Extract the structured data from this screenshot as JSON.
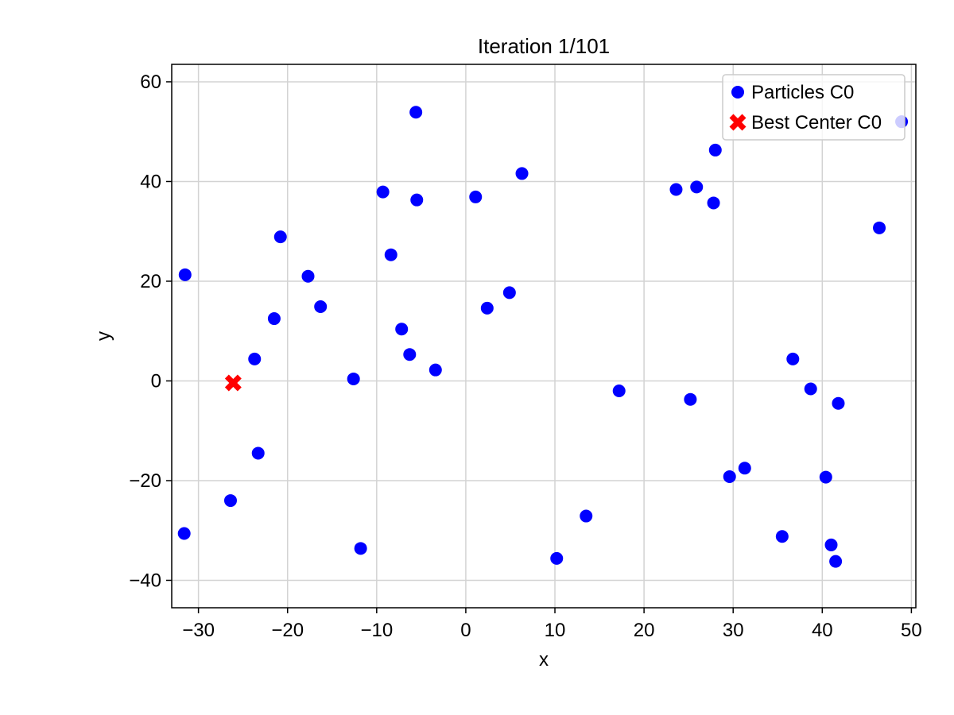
{
  "chart_data": {
    "type": "scatter",
    "title": "Iteration 1/101",
    "xlabel": "x",
    "ylabel": "y",
    "xlim": [
      -33,
      50.5
    ],
    "ylim": [
      -45.5,
      63.5
    ],
    "xticks": [
      -30,
      -20,
      -10,
      0,
      10,
      20,
      30,
      40,
      50
    ],
    "yticks": [
      -40,
      -20,
      0,
      20,
      40,
      60
    ],
    "grid": true,
    "legend_position": "top-right",
    "series": [
      {
        "name": "Particles C0",
        "marker": "circle",
        "color": "#0000ff",
        "points": [
          {
            "x": -31.5,
            "y": 21.3
          },
          {
            "x": -31.6,
            "y": -30.6
          },
          {
            "x": -26.4,
            "y": -24.0
          },
          {
            "x": -23.7,
            "y": 4.4
          },
          {
            "x": -23.3,
            "y": -14.5
          },
          {
            "x": -21.5,
            "y": 12.5
          },
          {
            "x": -20.8,
            "y": 28.9
          },
          {
            "x": -17.7,
            "y": 21.0
          },
          {
            "x": -16.3,
            "y": 14.9
          },
          {
            "x": -12.6,
            "y": 0.4
          },
          {
            "x": -11.8,
            "y": -33.6
          },
          {
            "x": -9.3,
            "y": 37.9
          },
          {
            "x": -8.4,
            "y": 25.3
          },
          {
            "x": -7.2,
            "y": 10.4
          },
          {
            "x": -6.3,
            "y": 5.3
          },
          {
            "x": -5.6,
            "y": 53.9
          },
          {
            "x": -5.5,
            "y": 36.3
          },
          {
            "x": -3.4,
            "y": 2.2
          },
          {
            "x": 1.1,
            "y": 36.9
          },
          {
            "x": 2.4,
            "y": 14.6
          },
          {
            "x": 4.9,
            "y": 17.7
          },
          {
            "x": 6.3,
            "y": 41.6
          },
          {
            "x": 10.2,
            "y": -35.6
          },
          {
            "x": 13.5,
            "y": -27.1
          },
          {
            "x": 17.2,
            "y": -2.0
          },
          {
            "x": 23.6,
            "y": 38.4
          },
          {
            "x": 25.2,
            "y": -3.7
          },
          {
            "x": 25.9,
            "y": 38.9
          },
          {
            "x": 27.8,
            "y": 35.7
          },
          {
            "x": 28.0,
            "y": 46.3
          },
          {
            "x": 29.6,
            "y": -19.2
          },
          {
            "x": 31.3,
            "y": -17.5
          },
          {
            "x": 35.5,
            "y": -31.2
          },
          {
            "x": 36.7,
            "y": 4.4
          },
          {
            "x": 38.7,
            "y": -1.6
          },
          {
            "x": 40.4,
            "y": -19.3
          },
          {
            "x": 41.0,
            "y": -32.9
          },
          {
            "x": 41.5,
            "y": -36.2
          },
          {
            "x": 41.8,
            "y": -4.5
          },
          {
            "x": 46.4,
            "y": 30.7
          },
          {
            "x": 48.9,
            "y": 52.0
          }
        ]
      },
      {
        "name": "Best Center C0",
        "marker": "x-filled",
        "color": "#ff0000",
        "points": [
          {
            "x": -26.1,
            "y": -0.4
          }
        ]
      }
    ]
  }
}
